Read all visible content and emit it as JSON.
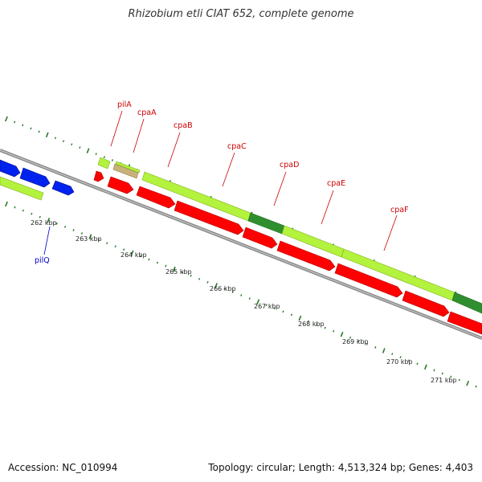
{
  "title": "Rhizobium etli CIAT 652, complete genome",
  "footer": {
    "accession": "Accession: NC_010994",
    "topology": "Topology: circular; Length: 4,513,324 bp; Genes: 4,403"
  },
  "colors": {
    "gene_label": "#cc0000",
    "gene_label_alt": "#0000cc",
    "track_light_green": "#b3f23d",
    "track_dark_green": "#2f8f2f",
    "track_red": "#ff0000",
    "track_blue": "#0022ee",
    "track_tan": "#c8b27a",
    "backbone": "#8a8a8a",
    "tick": "#2a7a2a"
  },
  "gene_labels": [
    {
      "text": "pilA",
      "color": "#cc0000"
    },
    {
      "text": "cpaA",
      "color": "#cc0000"
    },
    {
      "text": "cpaB",
      "color": "#cc0000"
    },
    {
      "text": "cpaC",
      "color": "#cc0000"
    },
    {
      "text": "cpaD",
      "color": "#cc0000"
    },
    {
      "text": "cpaE",
      "color": "#cc0000"
    },
    {
      "text": "cpaF",
      "color": "#cc0000"
    },
    {
      "text": "pilQ",
      "color": "#0000cc"
    }
  ],
  "kbp_labels": [
    "262 kbp",
    "263 kbp",
    "264 kbp",
    "265 kbp",
    "266 kbp",
    "267 kbp",
    "268 kbp",
    "269 kbp",
    "270 kbp",
    "271 kbp"
  ]
}
